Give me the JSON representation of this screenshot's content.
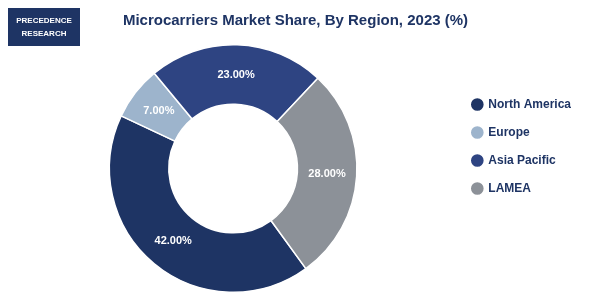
{
  "chart_data": {
    "type": "donut",
    "title": "Microcarriers Market Share, By Region, 2023 (%)",
    "categories": [
      "North America",
      "Europe",
      "Asia Pacific",
      "LAMEA"
    ],
    "values": [
      42.0,
      7.0,
      23.0,
      28.0
    ],
    "value_labels": [
      "42.00%",
      "7.00%",
      "23.00%",
      "28.00%"
    ],
    "data_labels": true,
    "colors": [
      "#1e3464",
      "#9db4cc",
      "#2e4482",
      "#8c9198"
    ],
    "legend": "right",
    "annotations": [
      "PRECEDENCE",
      "RESEARCH"
    ]
  }
}
